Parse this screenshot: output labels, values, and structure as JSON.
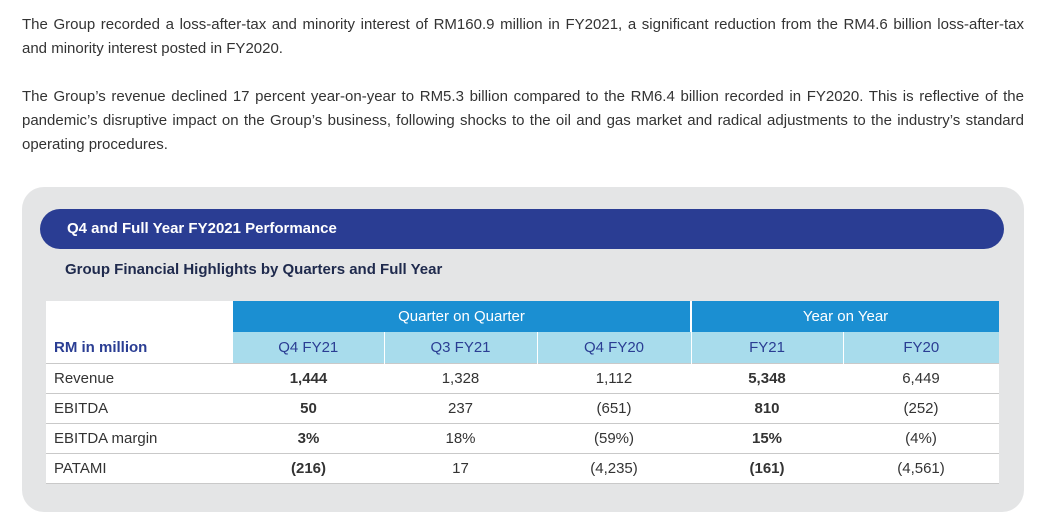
{
  "paragraphs": [
    "The Group recorded a loss-after-tax and minority interest of RM160.9 million in FY2021, a significant reduction from the RM4.6 billion loss-after-tax and minority interest posted in FY2020.",
    "The Group’s revenue declined 17 percent year-on-year to RM5.3 billion compared to the RM6.4 billion recorded in FY2020. This is reflective of the pandemic’s disruptive impact on the Group’s business, following shocks to the oil and gas market and radical adjustments to the industry’s standard operating procedures."
  ],
  "panel": {
    "banner_title": "Q4 and Full Year FY2021 Performance",
    "subtitle": "Group Financial Highlights by Quarters and Full Year"
  },
  "table": {
    "group_headers": [
      "Quarter on Quarter",
      "Year on Year"
    ],
    "unit_label": "RM in million",
    "columns": [
      "Q4 FY21",
      "Q3 FY21",
      "Q4 FY20",
      "FY21",
      "FY20"
    ],
    "rows": [
      {
        "label": "Revenue",
        "values": [
          "1,444",
          "1,328",
          "1,112",
          "5,348",
          "6,449"
        ]
      },
      {
        "label": "EBITDA",
        "values": [
          "50",
          "237",
          "(651)",
          "810",
          "(252)"
        ]
      },
      {
        "label": "EBITDA margin",
        "values": [
          "3%",
          "18%",
          "(59%)",
          "15%",
          "(4%)"
        ]
      },
      {
        "label": "PATAMI",
        "values": [
          "(216)",
          "17",
          "(4,235)",
          "(161)",
          "(4,561)"
        ]
      }
    ]
  },
  "colors": {
    "banner": "#2a3d93",
    "group_header": "#1b8fd2",
    "column_header": "#a8dcec",
    "panel_bg": "#e4e5e6"
  }
}
